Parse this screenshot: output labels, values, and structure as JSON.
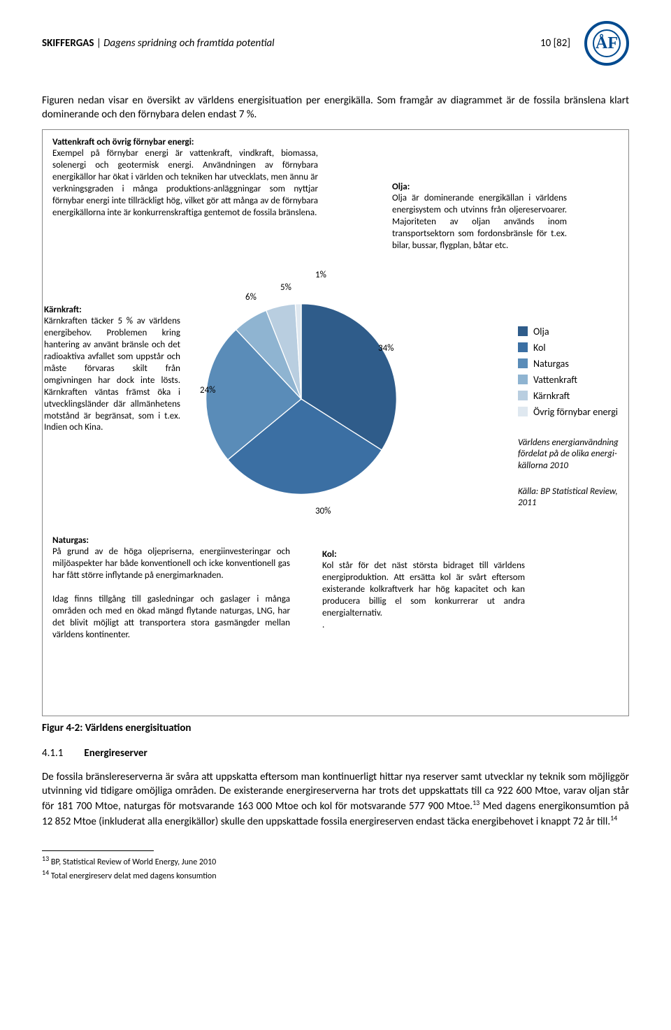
{
  "header": {
    "series_title": "SKIFFERGAS",
    "subtitle": "Dagens spridning och framtida potential",
    "page_indicator": "10 [82]",
    "logo_text": "ÅF"
  },
  "intro": "Figuren nedan visar en översikt av världens energisituation per energikälla. Som framgår av diagrammet är de fossila bränslena klart dominerande och den förnybara delen endast 7 %.",
  "figure": {
    "vattenkraft": {
      "heading": "Vattenkraft och övrig förnybar energi:",
      "text": "Exempel på förnybar energi är vattenkraft, vindkraft, biomassa, solenergi och geotermisk energi. Användningen av förnybara energikällor har ökat i världen och tekniken har utvecklats, men ännu är verkningsgraden i många produktions-anläggningar som nyttjar förnybar energi inte tillräckligt hög, vilket gör att många av de förnybara energikällorna inte är konkurrenskraftiga gentemot de fossila bränslena."
    },
    "olja": {
      "heading": "Olja:",
      "text": "Olja är dominerande energikällan i världens energisystem och utvinns från oljereservoarer. Majoriteten av oljan används inom transportsektorn som fordonsbränsle för t.ex. bilar, bussar, flygplan, båtar etc."
    },
    "karnkraft": {
      "heading": "Kärnkraft:",
      "text": "Kärnkraften täcker 5 % av världens energibehov. Problemen kring hantering av använt bränsle och det radioaktiva avfallet som uppstår och måste förvaras skilt från omgivningen har dock inte lösts. Kärnkraften väntas främst öka i utvecklingsländer där allmänhetens motstånd är begränsat, som i t.ex. Indien och Kina."
    },
    "naturgas": {
      "heading": "Naturgas:",
      "p1": "På grund av de höga oljepriserna, energiinvesteringar och miljöaspekter har både konventionell och icke konventionell gas har fått större inflytande på energimarknaden.",
      "p2": "Idag finns tillgång till gasledningar och gaslager i många områden  och med en ökad mängd flytande naturgas, LNG, har det blivit möjligt att transportera stora gasmängder mellan världens kontinenter."
    },
    "kol": {
      "heading": "Kol:",
      "text": "Kol står för det näst största bidraget till världens energiproduktion. Att ersätta kol är svårt eftersom existerande kolkraftverk har hög kapacitet och kan producera billig el som konkurrerar ut andra energialternativ."
    },
    "pie": {
      "type": "pie",
      "slices": [
        {
          "label": "Olja",
          "value": 34,
          "color": "#2f5c8a"
        },
        {
          "label": "Kol",
          "value": 30,
          "color": "#3b6fa3"
        },
        {
          "label": "Naturgas",
          "value": 24,
          "color": "#5a8cb8"
        },
        {
          "label": "Vattenkraft",
          "value": 6,
          "color": "#8fb4d1"
        },
        {
          "label": "Kärnkraft",
          "value": 5,
          "color": "#b9cee0"
        },
        {
          "label": "Övrig förnybar energi",
          "value": 1,
          "color": "#dfe8f0"
        }
      ],
      "labels": {
        "s0": "34%",
        "s1": "30%",
        "s2": "24%",
        "s3": "6%",
        "s4": "5%",
        "s5": "1%"
      },
      "stroke": "#ffffff"
    },
    "legend_title_note": "Världens energianvändning fördelat på de olika energi-källorna 2010",
    "source_note": "Källa: BP Statistical Review, 2011",
    "caption": "Figur 4-2: Världens energisituation"
  },
  "section": {
    "num": "4.1.1",
    "title": "Energireserver",
    "body": "De fossila bränslereserverna är svåra att uppskatta eftersom man kontinuerligt hittar nya reserver samt utvecklar ny teknik som möjliggör utvinning vid tidigare omöjliga områden. De existerande energireserverna har trots det uppskattats till ca 922 600 Mtoe, varav oljan står för 181 700 Mtoe, naturgas för motsvarande 163 000 Mtoe och kol för motsvarande 577 900 Mtoe.",
    "body2": " Med dagens energikonsumtion på 12 852 Mtoe (inkluderat alla energikällor) skulle den uppskattade fossila energireserven endast täcka energibehovet i knappt 72 år till.",
    "fn13_mark": "13",
    "fn14_mark": "14"
  },
  "footnotes": {
    "f13": "BP, Statistical Review of World Energy, June 2010",
    "f14": "Total energireserv delat med dagens konsumtion",
    "n13": "13",
    "n14": "14"
  }
}
